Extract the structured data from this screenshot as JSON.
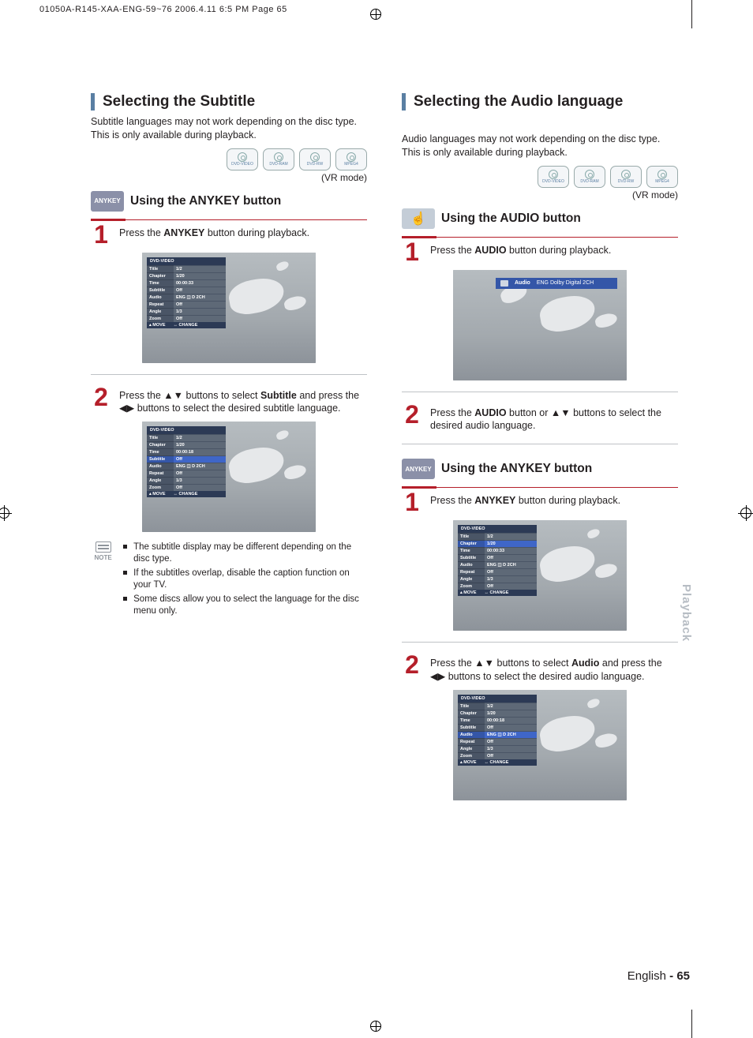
{
  "crop_header": "01050A-R145-XAA-ENG-59~76  2006.4.11  6:5 PM  Page 65",
  "side_tab": "Playback",
  "footer_lang": "English",
  "footer_page_sep": " - ",
  "footer_page": "65",
  "discs": [
    "DVD-VIDEO",
    "DVD-RAM",
    "DVD-RW",
    "MPEG4"
  ],
  "vr_mode": "(VR mode)",
  "badge_anykey": "ANYKEY",
  "hand_glyph": "☝",
  "left": {
    "heading": "Selecting the Subtitle",
    "intro": "Subtitle languages may not work depending on the disc type. This is only available during playback.",
    "sub1": "Using the ANYKEY button",
    "step1_pre": "Press the ",
    "step1_b": "ANYKEY",
    "step1_post": " button during playback.",
    "step2_a": "Press the ▲▼  buttons to select ",
    "step2_b": "Subtitle",
    "step2_c": " and press the ◀▶ buttons to select the desired subtitle language.",
    "note_label": "NOTE",
    "notes": [
      "The subtitle display may be different depending on the disc type.",
      "If the subtitles overlap, disable the caption function on your TV.",
      "Some discs allow you to select the language for the disc menu only."
    ]
  },
  "right": {
    "heading": "Selecting the Audio language",
    "intro": "Audio languages may not work depending on the disc type. This is only available during playback.",
    "sub1": "Using the AUDIO button",
    "step1_pre": "Press the ",
    "step1_b": "AUDIO",
    "step1_post": " button during playback.",
    "audio_bar_label": "Audio",
    "audio_bar_value": "ENG Dolby Digital 2CH",
    "step2_a": "Press the ",
    "step2_b": "AUDIO",
    "step2_c": " button or ▲▼ buttons to select the desired audio language.",
    "sub2": "Using the ANYKEY button",
    "step3_pre": "Press the ",
    "step3_b": "ANYKEY",
    "step3_post": " button during playback.",
    "step4_a": "Press the ▲▼ buttons to select ",
    "step4_b": "Audio",
    "step4_c": " and press the ◀▶ buttons to select the desired audio language."
  },
  "osd": {
    "title": "DVD-VIDEO",
    "rows": [
      {
        "lab": "Title",
        "val": "1/2"
      },
      {
        "lab": "Chapter",
        "val": "1/20"
      },
      {
        "lab": "Time",
        "val": "00:00:33"
      },
      {
        "lab": "Subtitle",
        "val": "Off"
      },
      {
        "lab": "Audio",
        "val": "ENG ◫ D  2CH"
      },
      {
        "lab": "Repeat",
        "val": "Off"
      },
      {
        "lab": "Angle",
        "val": "1/3"
      },
      {
        "lab": "Zoom",
        "val": "Off"
      }
    ],
    "time_alt": "00:00:18",
    "foot_move": "▴ MOVE",
    "foot_change": "↔ CHANGE",
    "hl_none": -1,
    "hl_subtitle": 3,
    "hl_audio": 4,
    "hl_chapter": 1
  },
  "colors": {
    "section_bar": "#5a7fa3",
    "accent_red": "#b51f2a",
    "badge_gray": "#8b90a8",
    "side_tab": "#b7bdc4"
  }
}
